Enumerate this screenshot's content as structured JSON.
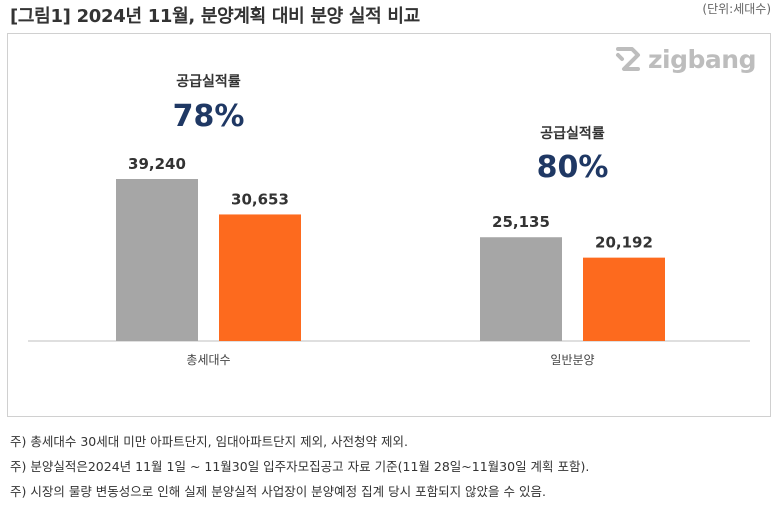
{
  "header": {
    "title": "[그림1] 2024년 11월, 분양계획 대비 분양 실적 비교",
    "unit": "(단위:세대수)"
  },
  "logo": {
    "text": "zigbang",
    "icon": "zigbang-logo-icon"
  },
  "colors": {
    "plan": "#a6a6a6",
    "actual": "#fd6a1e",
    "rate": "#1f3864",
    "axis": "#bfbfbf"
  },
  "chart_data": {
    "type": "bar",
    "categories": [
      "총세대수",
      "일반분양"
    ],
    "series": [
      {
        "values": [
          39240,
          25135
        ],
        "labels": [
          "39,240",
          "25,135"
        ]
      },
      {
        "values": [
          30653,
          20192
        ],
        "labels": [
          "30,653",
          "20,192"
        ]
      }
    ],
    "annotations": [
      {
        "label": "공급실적률",
        "value": "78%"
      },
      {
        "label": "공급실적률",
        "value": "80%"
      }
    ],
    "ylim": [
      0,
      39240
    ],
    "grid": false,
    "legend": false
  },
  "notes": [
    "주) 총세대수 30세대 미만 아파트단지, 임대아파트단지 제외, 사전청약 제외.",
    "주) 분양실적은2024년 11월 1일 ~ 11월30일 입주자모집공고 자료 기준(11월 28일~11월30일 계획 포함).",
    "주) 시장의 물량 변동성으로 인해 실제 분양실적 사업장이 분양예정 집계 당시 포함되지 않았을 수 있음."
  ]
}
